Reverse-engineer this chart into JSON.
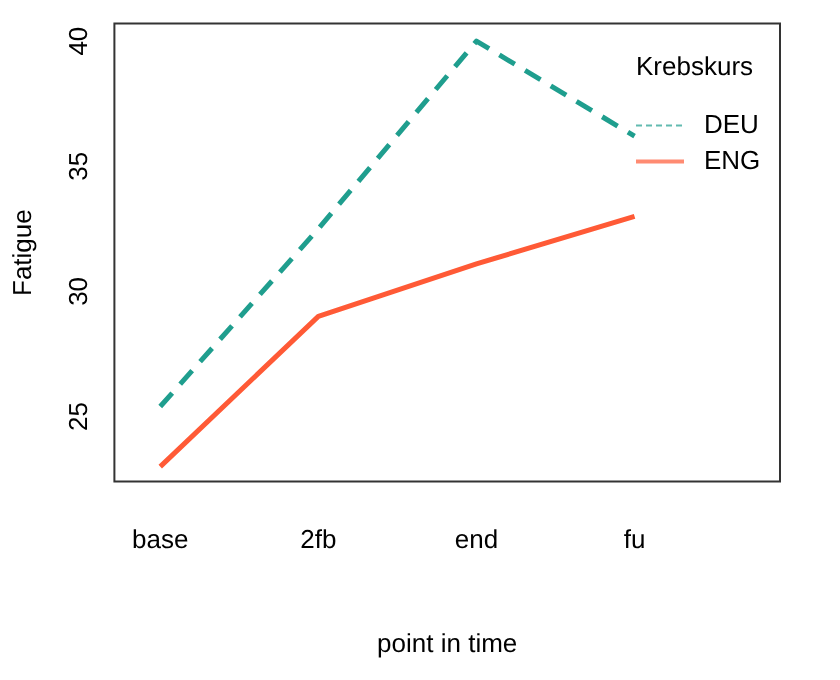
{
  "chart_data": {
    "type": "line",
    "xlabel": "point in time",
    "ylabel": "Fatigue",
    "legend_title": "Krebskurs",
    "categories": [
      "base",
      "2fb",
      "end",
      "fu"
    ],
    "series": [
      {
        "name": "DEU",
        "color": "#1f9e8e",
        "values": [
          25.4,
          32.5,
          40,
          36.2
        ],
        "line_style": "dashed"
      },
      {
        "name": "ENG",
        "color": "#ff5a36",
        "values": [
          23.0,
          29.0,
          31.1,
          33.0
        ],
        "line_style": "solid"
      }
    ],
    "ylim": [
      22.4,
      40.7
    ],
    "yticks": [
      25,
      30,
      35,
      40
    ],
    "grid": false,
    "legend": "top right",
    "marker": "none"
  }
}
